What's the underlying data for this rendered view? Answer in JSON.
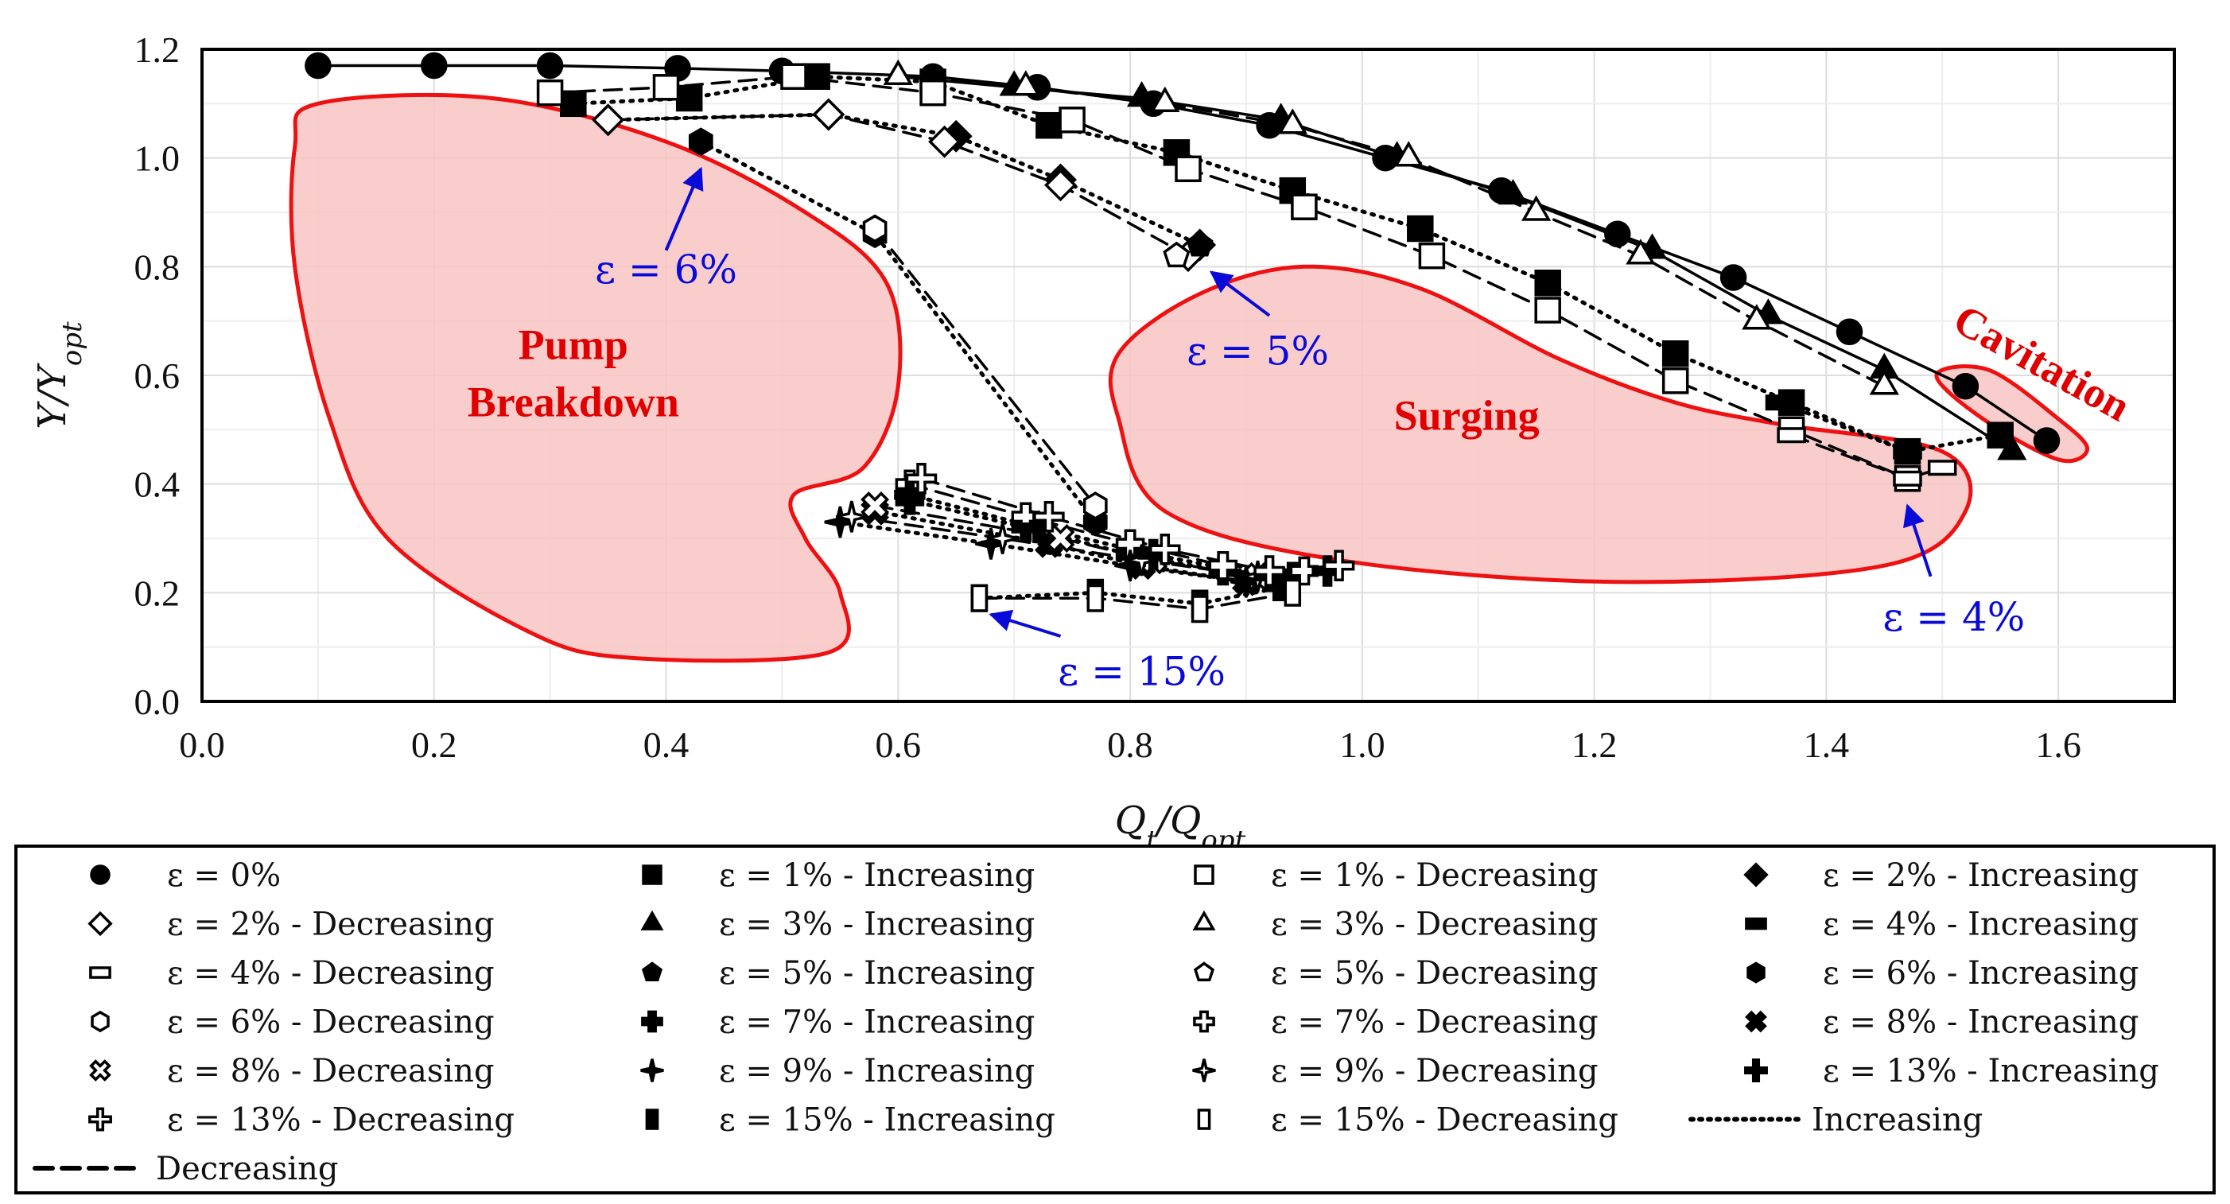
{
  "chart_data": {
    "type": "scatter",
    "xlabel": "Q_t/Q_opt",
    "ylabel": "Υ/Υ_opt",
    "xlim": [
      0.0,
      1.7
    ],
    "ylim": [
      0.0,
      1.2
    ],
    "x_ticks": [
      "0.0",
      "0.2",
      "0.4",
      "0.6",
      "0.8",
      "1.0",
      "1.2",
      "1.4",
      "1.6"
    ],
    "y_ticks": [
      "0.0",
      "0.2",
      "0.4",
      "0.6",
      "0.8",
      "1.0",
      "1.2"
    ],
    "grid": true,
    "regions": [
      {
        "name": "Pump Breakdown",
        "label": "Pump\nBreakdown",
        "label_at": [
          0.32,
          0.63
        ]
      },
      {
        "name": "Surging",
        "label": "Surging",
        "label_at": [
          1.09,
          0.5
        ]
      },
      {
        "name": "Cavitation",
        "label": "Cavitation",
        "label_at": [
          1.58,
          0.6
        ]
      }
    ],
    "annotations": [
      {
        "text": "ε = 6%",
        "label_at": [
          0.4,
          0.77
        ],
        "arrow_from": [
          0.4,
          0.83
        ],
        "arrow_to": [
          0.43,
          0.98
        ]
      },
      {
        "text": "ε = 5%",
        "label_at": [
          0.91,
          0.62
        ],
        "arrow_from": [
          0.92,
          0.71
        ],
        "arrow_to": [
          0.87,
          0.79
        ]
      },
      {
        "text": "ε = 4%",
        "label_at": [
          1.51,
          0.13
        ],
        "arrow_from": [
          1.49,
          0.23
        ],
        "arrow_to": [
          1.47,
          0.36
        ]
      },
      {
        "text": "ε = 15%",
        "label_at": [
          0.81,
          0.03
        ],
        "arrow_from": [
          0.74,
          0.12
        ],
        "arrow_to": [
          0.68,
          0.16
        ]
      }
    ],
    "series": [
      {
        "name": "ε = 0%",
        "marker": "circle",
        "fill": "#000000",
        "line": "solid",
        "x": [
          0.1,
          0.2,
          0.3,
          0.41,
          0.5,
          0.63,
          0.72,
          0.82,
          0.92,
          1.02,
          1.12,
          1.22,
          1.32,
          1.42,
          1.52,
          1.59
        ],
        "y": [
          1.17,
          1.17,
          1.17,
          1.165,
          1.16,
          1.15,
          1.13,
          1.1,
          1.06,
          1.0,
          0.94,
          0.86,
          0.78,
          0.68,
          0.58,
          0.48
        ]
      },
      {
        "name": "ε = 1% - Increasing",
        "marker": "square",
        "fill": "#000000",
        "line": "dotted",
        "x": [
          0.32,
          0.42,
          0.53,
          0.63,
          0.73,
          0.84,
          0.94,
          1.05,
          1.16,
          1.27,
          1.37,
          1.47,
          1.55
        ],
        "y": [
          1.1,
          1.11,
          1.15,
          1.14,
          1.06,
          1.01,
          0.94,
          0.87,
          0.77,
          0.64,
          0.55,
          0.46,
          0.49
        ]
      },
      {
        "name": "ε = 1% - Decreasing",
        "marker": "square",
        "fill": "#ffffff",
        "line": "dashed",
        "x": [
          0.3,
          0.4,
          0.51,
          0.63,
          0.75,
          0.85,
          0.95,
          1.06,
          1.16,
          1.27,
          1.37,
          1.47
        ],
        "y": [
          1.12,
          1.13,
          1.15,
          1.12,
          1.07,
          0.98,
          0.91,
          0.82,
          0.72,
          0.59,
          0.5,
          0.41
        ]
      },
      {
        "name": "ε = 2% - Increasing",
        "marker": "diamond",
        "fill": "#000000",
        "line": "dotted",
        "x": [
          0.35,
          0.54,
          0.65,
          0.74,
          0.86
        ],
        "y": [
          1.07,
          1.08,
          1.04,
          0.96,
          0.84
        ]
      },
      {
        "name": "ε = 2% - Decreasing",
        "marker": "diamond",
        "fill": "#ffffff",
        "line": "dashed",
        "x": [
          0.35,
          0.54,
          0.64,
          0.74,
          0.85
        ],
        "y": [
          1.07,
          1.08,
          1.03,
          0.95,
          0.82
        ]
      },
      {
        "name": "ε = 3% - Increasing",
        "marker": "triangle",
        "fill": "#000000",
        "line": "solid",
        "x": [
          0.6,
          0.7,
          0.81,
          0.93,
          1.03,
          1.13,
          1.25,
          1.35,
          1.45,
          1.56
        ],
        "y": [
          1.15,
          1.13,
          1.11,
          1.07,
          1.0,
          0.93,
          0.83,
          0.71,
          0.61,
          0.46
        ]
      },
      {
        "name": "ε = 3% - Decreasing",
        "marker": "triangle",
        "fill": "#ffffff",
        "line": "dashed",
        "x": [
          0.6,
          0.71,
          0.83,
          0.94,
          1.04,
          1.15,
          1.24,
          1.34,
          1.45
        ],
        "y": [
          1.15,
          1.13,
          1.1,
          1.06,
          1.0,
          0.9,
          0.82,
          0.7,
          0.58
        ]
      },
      {
        "name": "ε = 4% - Increasing",
        "marker": "bar",
        "fill": "#000000",
        "line": "dotted",
        "x": [
          1.36,
          1.47
        ],
        "y": [
          0.55,
          0.46
        ]
      },
      {
        "name": "ε = 4% - Decreasing",
        "marker": "bar",
        "fill": "#ffffff",
        "line": "dashed",
        "x": [
          1.37,
          1.47,
          1.5
        ],
        "y": [
          0.49,
          0.41,
          0.43
        ]
      },
      {
        "name": "ε = 5% - Increasing",
        "marker": "pentagon",
        "fill": "#000000",
        "line": "dotted",
        "x": [
          0.86
        ],
        "y": [
          0.84
        ]
      },
      {
        "name": "ε = 5% - Decreasing",
        "marker": "pentagon",
        "fill": "#ffffff",
        "line": "dashed",
        "x": [
          0.84
        ],
        "y": [
          0.82
        ]
      },
      {
        "name": "ε = 6% - Increasing",
        "marker": "hexagon",
        "fill": "#000000",
        "line": "dotted",
        "x": [
          0.43,
          0.58,
          0.77
        ],
        "y": [
          1.03,
          0.86,
          0.33
        ]
      },
      {
        "name": "ε = 6% - Decreasing",
        "marker": "hexagon",
        "fill": "#ffffff",
        "line": "dashed",
        "x": [
          0.58,
          0.77
        ],
        "y": [
          0.87,
          0.36
        ]
      },
      {
        "name": "ε = 7% - Increasing",
        "marker": "plus",
        "fill": "#000000",
        "line": "dotted",
        "x": [
          0.61,
          0.71,
          0.8,
          0.88,
          0.94
        ],
        "y": [
          0.37,
          0.32,
          0.27,
          0.24,
          0.23
        ]
      },
      {
        "name": "ε = 7% - Decreasing",
        "marker": "plus",
        "fill": "#ffffff",
        "line": "dashed",
        "x": [
          0.61,
          0.71,
          0.8,
          0.88,
          0.95
        ],
        "y": [
          0.4,
          0.34,
          0.29,
          0.25,
          0.24
        ]
      },
      {
        "name": "ε = 8% - Increasing",
        "marker": "x",
        "fill": "#000000",
        "line": "dotted",
        "x": [
          0.58,
          0.73,
          0.81,
          0.9
        ],
        "y": [
          0.35,
          0.29,
          0.25,
          0.22
        ]
      },
      {
        "name": "ε = 8% - Decreasing",
        "marker": "x",
        "fill": "#ffffff",
        "line": "dashed",
        "x": [
          0.58,
          0.74,
          0.82,
          0.91
        ],
        "y": [
          0.36,
          0.3,
          0.26,
          0.23
        ]
      },
      {
        "name": "ε = 9% - Increasing",
        "marker": "star",
        "fill": "#000000",
        "line": "dotted",
        "x": [
          0.55,
          0.68,
          0.8,
          0.9
        ],
        "y": [
          0.33,
          0.29,
          0.25,
          0.22
        ]
      },
      {
        "name": "ε = 9% - Decreasing",
        "marker": "star",
        "fill": "#ffffff",
        "line": "dashed",
        "x": [
          0.56,
          0.69,
          0.81,
          0.91
        ],
        "y": [
          0.34,
          0.3,
          0.26,
          0.23
        ]
      },
      {
        "name": "ε = 13% - Increasing",
        "marker": "cross",
        "fill": "#000000",
        "line": "dotted",
        "x": [
          0.61,
          0.72,
          0.82,
          0.92,
          0.97
        ],
        "y": [
          0.38,
          0.32,
          0.27,
          0.23,
          0.24
        ]
      },
      {
        "name": "ε = 13% - Decreasing",
        "marker": "cross",
        "fill": "#ffffff",
        "line": "dashed",
        "x": [
          0.62,
          0.73,
          0.83,
          0.92,
          0.98
        ],
        "y": [
          0.41,
          0.34,
          0.28,
          0.24,
          0.25
        ]
      },
      {
        "name": "ε = 15% - Increasing",
        "marker": "rect",
        "fill": "#000000",
        "line": "dotted",
        "x": [
          0.67,
          0.77,
          0.86,
          0.93
        ],
        "y": [
          0.19,
          0.2,
          0.18,
          0.21
        ]
      },
      {
        "name": "ε = 15% - Decreasing",
        "marker": "rect",
        "fill": "#ffffff",
        "line": "dashed",
        "x": [
          0.67,
          0.77,
          0.86,
          0.94
        ],
        "y": [
          0.19,
          0.19,
          0.17,
          0.2
        ]
      }
    ],
    "legend": {
      "placement": "bottom",
      "columns": 4,
      "entries": [
        {
          "label": "ε = 0%",
          "marker": "circle",
          "fill": "#000000"
        },
        {
          "label": "ε = 1% - Increasing",
          "marker": "square",
          "fill": "#000000"
        },
        {
          "label": "ε = 1% - Decreasing",
          "marker": "square",
          "fill": "#ffffff"
        },
        {
          "label": "ε = 2% - Increasing",
          "marker": "diamond",
          "fill": "#000000"
        },
        {
          "label": "ε = 2% - Decreasing",
          "marker": "diamond",
          "fill": "#ffffff"
        },
        {
          "label": "ε = 3% - Increasing",
          "marker": "triangle",
          "fill": "#000000"
        },
        {
          "label": "ε = 3% - Decreasing",
          "marker": "triangle",
          "fill": "#ffffff"
        },
        {
          "label": "ε = 4% - Increasing",
          "marker": "bar",
          "fill": "#000000"
        },
        {
          "label": "ε = 4% - Decreasing",
          "marker": "bar",
          "fill": "#ffffff"
        },
        {
          "label": "ε = 5% - Increasing",
          "marker": "pentagon",
          "fill": "#000000"
        },
        {
          "label": "ε = 5% - Decreasing",
          "marker": "pentagon",
          "fill": "#ffffff"
        },
        {
          "label": "ε = 6% - Increasing",
          "marker": "hexagon",
          "fill": "#000000"
        },
        {
          "label": "ε = 6% - Decreasing",
          "marker": "hexagon",
          "fill": "#ffffff"
        },
        {
          "label": "ε = 7% - Increasing",
          "marker": "plus",
          "fill": "#000000"
        },
        {
          "label": "ε = 7% - Decreasing",
          "marker": "plus",
          "fill": "#ffffff"
        },
        {
          "label": "ε = 8% - Increasing",
          "marker": "x",
          "fill": "#000000"
        },
        {
          "label": "ε = 8% - Decreasing",
          "marker": "x",
          "fill": "#ffffff"
        },
        {
          "label": "ε = 9% - Increasing",
          "marker": "star",
          "fill": "#000000"
        },
        {
          "label": "ε = 9% - Decreasing",
          "marker": "star",
          "fill": "#ffffff"
        },
        {
          "label": "ε = 13% - Increasing",
          "marker": "cross",
          "fill": "#000000"
        },
        {
          "label": "ε = 13% - Decreasing",
          "marker": "cross",
          "fill": "#ffffff"
        },
        {
          "label": "ε = 15% - Increasing",
          "marker": "rect",
          "fill": "#000000"
        },
        {
          "label": "ε = 15% - Decreasing",
          "marker": "rect",
          "fill": "#ffffff"
        },
        {
          "label": "Increasing",
          "marker": "dotted-line",
          "fill": "#000000"
        },
        {
          "label": "Decreasing",
          "marker": "dashed-line",
          "fill": "#000000"
        }
      ]
    },
    "colors": {
      "region_fill": "#f9c4c4",
      "region_stroke": "#ee1111",
      "region_text": "#e00000",
      "annotation": "#0a0ad8",
      "grid": "#dddddd",
      "ink": "#000000"
    }
  }
}
